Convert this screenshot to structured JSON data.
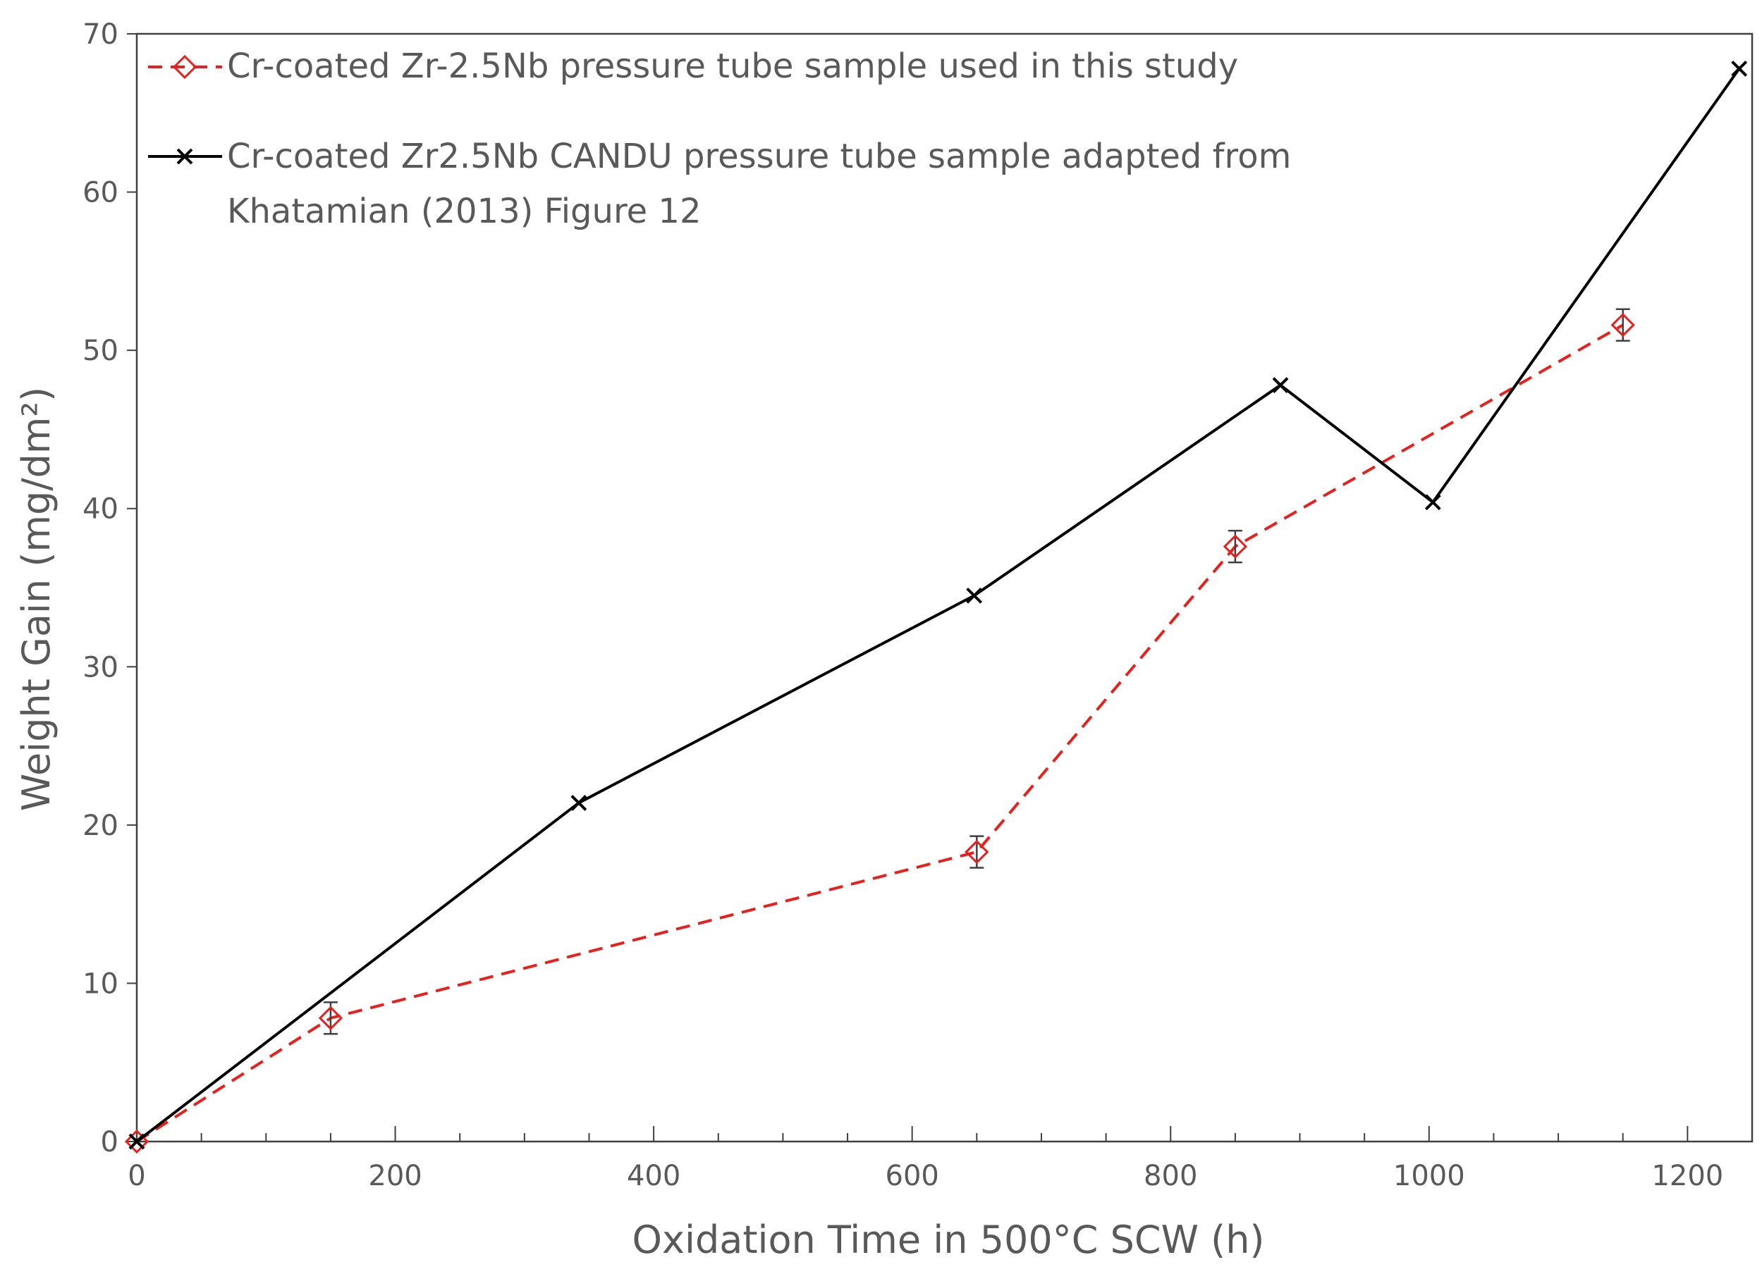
{
  "chart_data": {
    "type": "line",
    "title": "",
    "xlabel": "Oxidation Time in 500°C SCW (h)",
    "ylabel": "Weight Gain (mg/dm²)",
    "xlim": [
      0,
      1250
    ],
    "ylim": [
      0,
      70
    ],
    "x_ticks": [
      "0",
      "200",
      "400",
      "600",
      "800",
      "1000",
      "1200"
    ],
    "y_ticks": [
      "0",
      "10",
      "20",
      "30",
      "40",
      "50",
      "60",
      "70"
    ],
    "x_tick_values": [
      0,
      200,
      400,
      600,
      800,
      1000,
      1200
    ],
    "y_tick_values": [
      0,
      10,
      20,
      30,
      40,
      50,
      60,
      70
    ],
    "x_minor_step": 50,
    "grid": false,
    "legend_position": "top-left",
    "series": [
      {
        "name": "Cr-coated Zr-2.5Nb pressure tube sample used in this study",
        "color": "#e8201c",
        "line_style": "dashed",
        "marker": "diamond-open",
        "x": [
          0,
          150,
          650,
          850,
          1150
        ],
        "y": [
          0,
          7.8,
          18.3,
          37.6,
          51.6
        ],
        "error": [
          0,
          1.0,
          1.0,
          1.0,
          1.0
        ]
      },
      {
        "name": "Cr-coated Zr2.5Nb CANDU pressure tube sample adapted from",
        "name_line2": "Khatamian (2013) Figure 12",
        "color": "#000000",
        "line_style": "solid",
        "marker": "x",
        "x": [
          0,
          342,
          648,
          885,
          1003,
          1240
        ],
        "y": [
          0,
          21.4,
          34.5,
          47.8,
          40.4,
          67.8
        ]
      }
    ]
  }
}
